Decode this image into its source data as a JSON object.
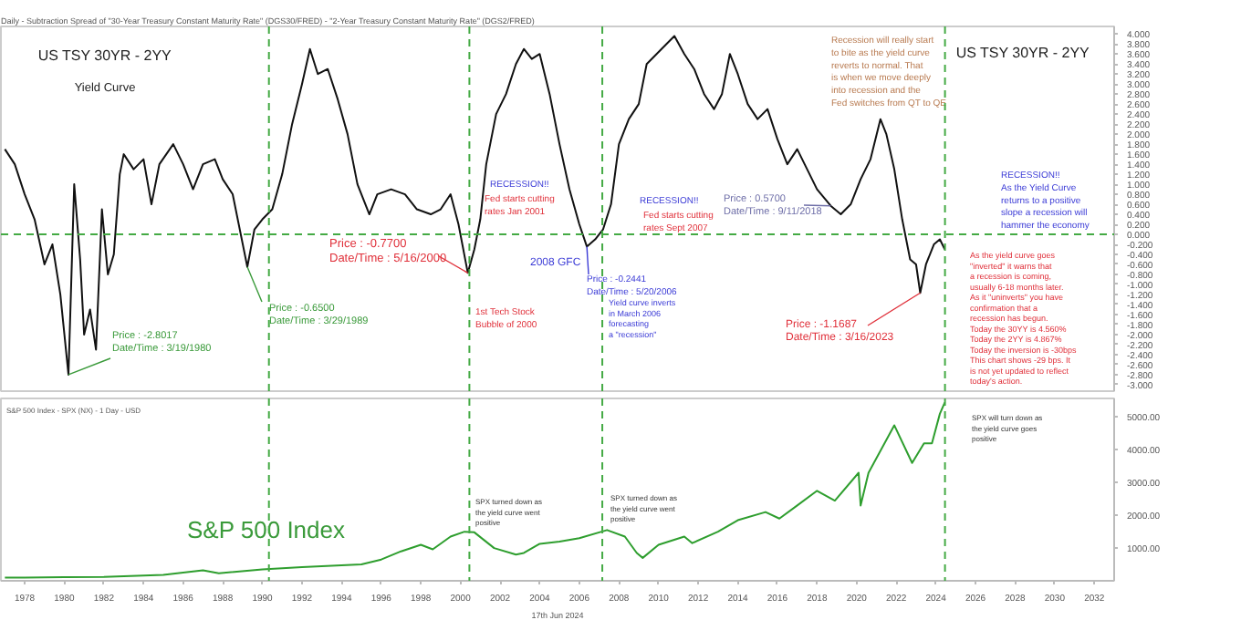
{
  "chart_data": [
    {
      "type": "line",
      "title": "US TSY 30YR - 2YY",
      "subtitle": "Yield Curve",
      "xlim": [
        1976.8,
        2033
      ],
      "ylim": [
        -3.13,
        4.15
      ],
      "tick_labels": "y",
      "yticks": [
        {
          "value": -3.0,
          "label": "-3.000"
        },
        {
          "value": -2.8,
          "label": "-2.800"
        },
        {
          "value": -2.6,
          "label": "-2.600"
        },
        {
          "value": -2.4,
          "label": "-2.400"
        },
        {
          "value": -2.2,
          "label": "-2.200"
        },
        {
          "value": -2.0,
          "label": "-2.000"
        },
        {
          "value": -1.8,
          "label": "-1.800"
        },
        {
          "value": -1.6,
          "label": "-1.600"
        },
        {
          "value": -1.4,
          "label": "-1.400"
        },
        {
          "value": -1.2,
          "label": "-1.200"
        },
        {
          "value": -1.0,
          "label": "-1.000"
        },
        {
          "value": -0.8,
          "label": "-0.800"
        },
        {
          "value": -0.6,
          "label": "-0.600"
        },
        {
          "value": -0.4,
          "label": "-0.400"
        },
        {
          "value": -0.2,
          "label": "-0.200"
        },
        {
          "value": 0,
          "label": "0.000"
        },
        {
          "value": 0.2,
          "label": "0.200"
        },
        {
          "value": 0.4,
          "label": "0.400"
        },
        {
          "value": 0.6,
          "label": "0.600"
        },
        {
          "value": 0.8,
          "label": "0.800"
        },
        {
          "value": 1.0,
          "label": "1.000"
        },
        {
          "value": 1.2,
          "label": "1.200"
        },
        {
          "value": 1.4,
          "label": "1.400"
        },
        {
          "value": 1.6,
          "label": "1.600"
        },
        {
          "value": 1.8,
          "label": "1.800"
        },
        {
          "value": 2.0,
          "label": "2.000"
        },
        {
          "value": 2.2,
          "label": "2.200"
        },
        {
          "value": 2.4,
          "label": "2.400"
        },
        {
          "value": 2.6,
          "label": "2.600"
        },
        {
          "value": 2.8,
          "label": "2.800"
        },
        {
          "value": 3.0,
          "label": "3.000"
        },
        {
          "value": 3.2,
          "label": "3.200"
        },
        {
          "value": 3.4,
          "label": "3.400"
        },
        {
          "value": 3.6,
          "label": "3.600"
        },
        {
          "value": 3.8,
          "label": "3.800"
        },
        {
          "value": 4.0,
          "label": "4.000"
        }
      ],
      "series": [
        {
          "color": "#111111",
          "x": [
            1977.0,
            1977.5,
            1978.0,
            1978.5,
            1979.0,
            1979.4,
            1979.8,
            1980.21,
            1980.5,
            1980.8,
            1981.0,
            1981.3,
            1981.6,
            1981.9,
            1982.2,
            1982.5,
            1982.8,
            1983.0,
            1983.5,
            1984.0,
            1984.4,
            1984.8,
            1985.5,
            1986.0,
            1986.5,
            1987.0,
            1987.6,
            1988.0,
            1988.5,
            1989.24,
            1989.6,
            1990.0,
            1990.5,
            1991.0,
            1991.5,
            1992.0,
            1992.4,
            1992.8,
            1993.3,
            1993.8,
            1994.3,
            1994.8,
            1995.4,
            1995.8,
            1996.5,
            1997.2,
            1997.8,
            1998.5,
            1999.0,
            1999.5,
            1999.9,
            2000.37,
            2000.7,
            2001.0,
            2001.3,
            2001.8,
            2002.3,
            2002.8,
            2003.2,
            2003.6,
            2004.0,
            2004.5,
            2005.0,
            2005.5,
            2006.0,
            2006.38,
            2006.8,
            2007.2,
            2007.6,
            2008.0,
            2008.5,
            2009.0,
            2009.4,
            2009.9,
            2010.4,
            2010.8,
            2011.3,
            2011.8,
            2012.3,
            2012.8,
            2013.2,
            2013.6,
            2014.0,
            2014.5,
            2015.0,
            2015.5,
            2016.0,
            2016.5,
            2017.0,
            2017.5,
            2018.0,
            2018.69,
            2019.2,
            2019.7,
            2020.2,
            2020.7,
            2021.2,
            2021.5,
            2021.9,
            2022.3,
            2022.7,
            2023.0,
            2023.21,
            2023.5,
            2023.9,
            2024.2,
            2024.45
          ],
          "values": [
            1.7,
            1.4,
            0.8,
            0.3,
            -0.6,
            -0.2,
            -1.2,
            -2.8017,
            1.0,
            -0.5,
            -2.0,
            -1.5,
            -2.3,
            0.5,
            -0.8,
            -0.4,
            1.2,
            1.6,
            1.3,
            1.5,
            0.6,
            1.4,
            1.8,
            1.4,
            0.9,
            1.4,
            1.5,
            1.1,
            0.8,
            -0.65,
            0.1,
            0.3,
            0.5,
            1.2,
            2.2,
            3.0,
            3.7,
            3.2,
            3.3,
            2.7,
            2.0,
            1.0,
            0.4,
            0.8,
            0.9,
            0.8,
            0.5,
            0.4,
            0.5,
            0.8,
            0.2,
            -0.77,
            -0.3,
            0.3,
            1.4,
            2.4,
            2.8,
            3.4,
            3.7,
            3.5,
            3.6,
            2.8,
            1.8,
            0.9,
            0.2,
            -0.2441,
            -0.1,
            0.1,
            0.6,
            1.8,
            2.3,
            2.6,
            3.4,
            3.6,
            3.8,
            3.96,
            3.6,
            3.3,
            2.8,
            2.5,
            2.8,
            3.6,
            3.2,
            2.6,
            2.3,
            2.5,
            1.9,
            1.4,
            1.7,
            1.3,
            0.9,
            0.57,
            0.4,
            0.6,
            1.1,
            1.5,
            2.3,
            2.0,
            1.3,
            0.3,
            -0.5,
            -0.6,
            -1.1687,
            -0.6,
            -0.2,
            -0.1,
            -0.3
          ]
        }
      ],
      "ref_lines": [
        {
          "axis": "y",
          "value": 0,
          "color": "#44aa44",
          "line_style": "dashed"
        },
        {
          "axis": "x",
          "value": 1990.33,
          "color": "#44aa44",
          "line_style": "dashed"
        },
        {
          "axis": "x",
          "value": 2000.45,
          "color": "#44aa44",
          "line_style": "dashed"
        },
        {
          "axis": "x",
          "value": 2007.16,
          "color": "#44aa44",
          "line_style": "dashed"
        },
        {
          "axis": "x",
          "value": 2024.46,
          "color": "#44aa44",
          "line_style": "dashed"
        }
      ],
      "annotations": [
        "Daily - Subtraction Spread of \"30-Year Treasury Constant Maturity Rate\" (DGS30/FRED) - \"2-Year Treasury Constant Maturity Rate\" (DGS2/FRED)",
        "US TSY 30YR - 2YY",
        {
          "text": "Price : -2.8017\nDate/Time : 3/19/1980",
          "x": 1980.21,
          "y": -2.8017
        },
        {
          "text": "Price : -0.6500\nDate/Time : 3/29/1989",
          "x": 1989.24,
          "y": -0.65
        },
        {
          "text": "Price : -0.7700\nDate/Time : 5/16/2000",
          "x": 2000.37,
          "y": -0.77
        },
        "1st Tech Stock\nBubble of 2000",
        "RECESSION!!",
        "Fed starts cutting\nrates Jan 2001",
        "2008 GFC",
        {
          "text": "Price : -0.2441\nDate/Time : 5/20/2006",
          "x": 2006.38,
          "y": -0.2441
        },
        "Yield curve inverts\nin March 2006\nforecasting\na \"recession\"",
        "RECESSION!!",
        "Fed starts cutting\nrates Sept 2007",
        {
          "text": "Price : 0.5700\nDate/Time : 9/11/2018",
          "x": 2018.69,
          "y": 0.57
        },
        {
          "text": "Price : -1.1687\nDate/Time : 3/16/2023",
          "x": 2023.21,
          "y": -1.1687
        },
        "Recession will really start\nto bite as the yield curve\nreverts to normal.  That\nis when we move deeply\ninto recession and the\nFed switches from QT to QE",
        "RECESSION!!\nAs the Yield Curve\nreturns to a positive\nslope a recession will\nhammer the economy",
        "As the yield curve goes\n\"inverted\" it warns that\na recession is coming,\nusually 6-18 months later.\nAs it \"uninverts\" you have\nconfirmation that a\nrecession has begun.\nToday the 30YY is 4.560%\nToday the 2YY is 4.867%\nToday the inversion is -30bps\nThis chart shows -29 bps. It\nis not yet updated to reflect\ntoday's action."
      ]
    },
    {
      "type": "line",
      "title": "S&P 500 Index",
      "xlim": [
        1976.8,
        2033
      ],
      "ylim": [
        0,
        5570
      ],
      "xticks": [
        1978,
        1980,
        1982,
        1984,
        1986,
        1988,
        1990,
        1992,
        1994,
        1996,
        1998,
        2000,
        2002,
        2004,
        2006,
        2008,
        2010,
        2012,
        2014,
        2016,
        2018,
        2020,
        2022,
        2024,
        2026,
        2028,
        2030,
        2032
      ],
      "yticks": [
        {
          "value": 1000,
          "label": "1000.00"
        },
        {
          "value": 2000,
          "label": "2000.00"
        },
        {
          "value": 3000,
          "label": "3000.00"
        },
        {
          "value": 4000,
          "label": "4000.00"
        },
        {
          "value": 5000,
          "label": "5000.00"
        }
      ],
      "series": [
        {
          "color": "#2e9e2e",
          "x": [
            1977.0,
            1978.0,
            1980.0,
            1982.0,
            1985.0,
            1987.0,
            1987.8,
            1990.0,
            1992.0,
            1995.0,
            1996.0,
            1997.0,
            1998.0,
            1998.6,
            1999.5,
            2000.2,
            2000.7,
            2001.7,
            2002.8,
            2003.2,
            2004.0,
            2005.0,
            2006.0,
            2007.4,
            2008.3,
            2008.9,
            2009.2,
            2010.0,
            2011.3,
            2011.7,
            2013.0,
            2014.0,
            2015.4,
            2016.1,
            2017.0,
            2018.0,
            2018.9,
            2020.1,
            2020.2,
            2020.6,
            2021.9,
            2022.8,
            2023.4,
            2023.8,
            2024.2,
            2024.45
          ],
          "values": [
            100,
            100,
            110,
            120,
            180,
            320,
            230,
            350,
            420,
            500,
            650,
            900,
            1100,
            960,
            1350,
            1500,
            1480,
            1000,
            800,
            850,
            1130,
            1200,
            1300,
            1550,
            1350,
            850,
            700,
            1100,
            1350,
            1150,
            1500,
            1850,
            2100,
            1900,
            2300,
            2750,
            2450,
            3300,
            2300,
            3300,
            4750,
            3600,
            4200,
            4200,
            5100,
            5450
          ]
        }
      ],
      "ref_lines": [
        {
          "axis": "x",
          "value": 1990.33,
          "color": "#44aa44",
          "line_style": "dashed"
        },
        {
          "axis": "x",
          "value": 2000.45,
          "color": "#44aa44",
          "line_style": "dashed"
        },
        {
          "axis": "x",
          "value": 2007.16,
          "color": "#44aa44",
          "line_style": "dashed"
        },
        {
          "axis": "x",
          "value": 2024.46,
          "color": "#44aa44",
          "line_style": "dashed"
        }
      ],
      "annotations": [
        "S&P 500 Index - SPX (NX) - 1 Day - USD",
        "SPX turned down as\nthe yield curve went\npositive",
        "SPX turned down as\nthe yield curve went\npositive",
        "SPX will turn down as\nthe yield curve goes\npositive",
        "17th Jun 2024"
      ]
    }
  ]
}
